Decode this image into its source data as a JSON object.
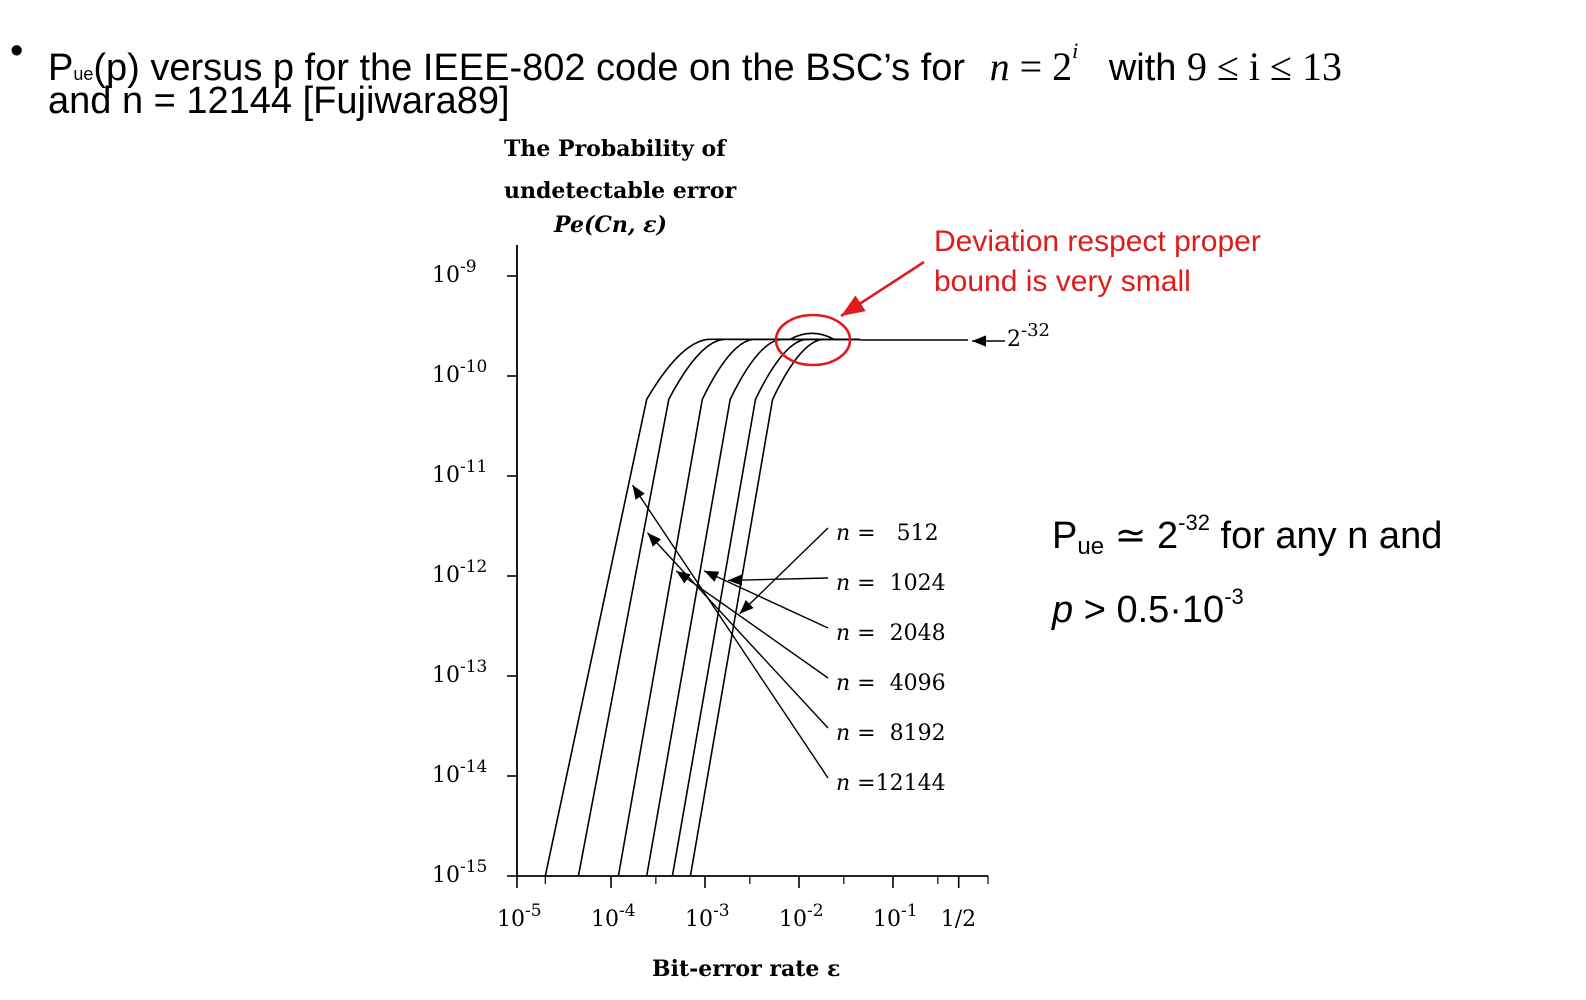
{
  "heading": {
    "bullet": "•",
    "p_main": "P",
    "p_sub": "ue",
    "text1": "(p) versus p for the IEEE-802 code on the BSC’s for",
    "math_n": "n",
    "math_eq": "= 2",
    "math_i": "i",
    "with": "with",
    "math_range": "9 ≤ i ≤ 13",
    "line2": "and n = 12144 [Fujiwara89]"
  },
  "annotation": {
    "line1": "Deviation respect proper",
    "line2": "bound is very small",
    "color": "#e01b1b"
  },
  "note": {
    "p": "P",
    "p_sub": "ue",
    "approx": " ≃ 2",
    "exp": "-32",
    "rest1": " for any n and",
    "line2_p": "p",
    "line2_rest": " > 0.5·10",
    "line2_exp": "-3"
  },
  "chart_data": {
    "type": "line",
    "ylabel": [
      "The Probability of",
      "undetectable error",
      "Pe(Cn, ε)"
    ],
    "xlabel": "Bit-error rate ε",
    "x_scale": "log",
    "y_scale": "log",
    "xlim": [
      1e-05,
      0.5
    ],
    "ylim": [
      1e-15,
      1e-09
    ],
    "x_ticks": [
      {
        "base": "10",
        "exp": "-5"
      },
      {
        "base": "10",
        "exp": "-4"
      },
      {
        "base": "10",
        "exp": "-3"
      },
      {
        "base": "10",
        "exp": "-2"
      },
      {
        "base": "10",
        "exp": "-1"
      },
      {
        "base": "1/2",
        "exp": ""
      }
    ],
    "y_ticks": [
      {
        "base": "10",
        "exp": "-9"
      },
      {
        "base": "10",
        "exp": "-10"
      },
      {
        "base": "10",
        "exp": "-11"
      },
      {
        "base": "10",
        "exp": "-12"
      },
      {
        "base": "10",
        "exp": "-13"
      },
      {
        "base": "10",
        "exp": "-14"
      },
      {
        "base": "10",
        "exp": "-15"
      }
    ],
    "bound_label": {
      "base": "2",
      "exp": "-32"
    },
    "plateau_value": 2.33e-10,
    "series": [
      {
        "name": "n =   512",
        "rise_start": 0.0007,
        "plateau_start": 0.018
      },
      {
        "name": "n =  1024",
        "rise_start": 0.00045,
        "plateau_start": 0.012
      },
      {
        "name": "n =  2048",
        "rise_start": 0.00024,
        "plateau_start": 0.0065
      },
      {
        "name": "n =  4096",
        "rise_start": 0.00012,
        "plateau_start": 0.0033
      },
      {
        "name": "n =  8192",
        "rise_start": 4.5e-05,
        "plateau_start": 0.0016
      },
      {
        "name": "n =12144",
        "rise_start": 2e-05,
        "plateau_start": 0.0011
      }
    ]
  }
}
